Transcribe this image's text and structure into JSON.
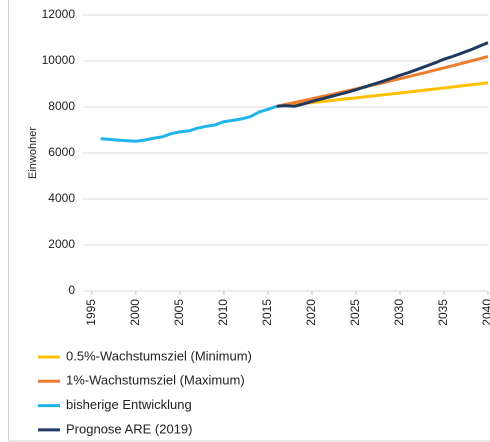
{
  "chart_data": {
    "type": "line",
    "y_label": "Einwohner",
    "x": [
      1996,
      1997,
      1998,
      1999,
      2000,
      2001,
      2002,
      2003,
      2004,
      2005,
      2006,
      2007,
      2008,
      2009,
      2010,
      2011,
      2012,
      2013,
      2014,
      2015,
      2016,
      2017,
      2018,
      2019,
      2020,
      2021,
      2022,
      2023,
      2024,
      2025,
      2026,
      2027,
      2028,
      2029,
      2030,
      2031,
      2032,
      2033,
      2034,
      2035,
      2036,
      2037,
      2038,
      2039,
      2040
    ],
    "series": [
      {
        "name": "0.5%-Wachstumsziel (Minimum)",
        "color": "#ffc000",
        "values": [
          null,
          null,
          null,
          null,
          null,
          null,
          null,
          null,
          null,
          null,
          null,
          null,
          null,
          null,
          null,
          null,
          null,
          null,
          null,
          null,
          8030,
          8070,
          8110,
          8151,
          8192,
          8233,
          8274,
          8315,
          8357,
          8399,
          8441,
          8483,
          8525,
          8568,
          8611,
          8654,
          8697,
          8741,
          8784,
          8828,
          8873,
          8917,
          8962,
          9007,
          9052
        ]
      },
      {
        "name": "1%-Wachstumsziel (Maximum)",
        "color": "#ed7d31",
        "values": [
          null,
          null,
          null,
          null,
          null,
          null,
          null,
          null,
          null,
          null,
          null,
          null,
          null,
          null,
          null,
          null,
          null,
          null,
          null,
          null,
          8030,
          8110,
          8191,
          8273,
          8356,
          8440,
          8524,
          8609,
          8695,
          8782,
          8870,
          8959,
          9048,
          9139,
          9230,
          9323,
          9416,
          9510,
          9605,
          9701,
          9798,
          9896,
          9995,
          10095,
          10196
        ]
      },
      {
        "name": "bisherige Entwicklung",
        "color": "#1fb5ea",
        "values": [
          6620,
          6590,
          6560,
          6530,
          6510,
          6560,
          6640,
          6700,
          6840,
          6920,
          6960,
          7080,
          7160,
          7220,
          7360,
          7420,
          7480,
          7580,
          7780,
          7900,
          8030,
          null,
          null,
          null,
          null,
          null,
          null,
          null,
          null,
          null,
          null,
          null,
          null,
          null,
          null,
          null,
          null,
          null,
          null,
          null,
          null,
          null,
          null,
          null,
          null
        ]
      },
      {
        "name": "Prognose ARE (2019)",
        "color": "#1f3a5f",
        "values": [
          null,
          null,
          null,
          null,
          null,
          null,
          null,
          null,
          null,
          null,
          null,
          null,
          null,
          null,
          null,
          null,
          null,
          null,
          null,
          null,
          8030,
          8060,
          8030,
          8130,
          8240,
          8340,
          8440,
          8540,
          8640,
          8750,
          8870,
          8990,
          9110,
          9240,
          9380,
          9500,
          9640,
          9780,
          9920,
          10080,
          10200,
          10340,
          10480,
          10640,
          10800
        ]
      }
    ],
    "xlim": [
      1994,
      2040
    ],
    "xticks": [
      1995,
      2000,
      2005,
      2010,
      2015,
      2020,
      2025,
      2030,
      2035,
      2040
    ],
    "ylim": [
      0,
      12000
    ],
    "yticks": [
      0,
      2000,
      4000,
      6000,
      8000,
      10000,
      12000
    ],
    "grid": true,
    "legend": "bottom"
  }
}
